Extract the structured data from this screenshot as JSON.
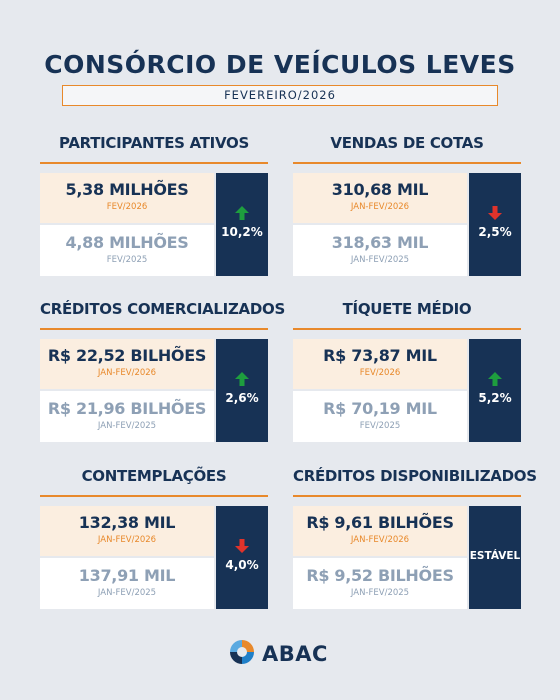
{
  "header": {
    "title": "CONSÓRCIO DE VEÍCULOS LEVES",
    "period": "FEVEREIRO/2026"
  },
  "cards": [
    {
      "title": "PARTICIPANTES ATIVOS",
      "current_value": "5,38 MILHÕES",
      "current_period": "FEV/2026",
      "previous_value": "4,88 MILHÕES",
      "previous_period": "FEV/2025",
      "change": "10,2%",
      "direction": "up"
    },
    {
      "title": "VENDAS DE COTAS",
      "current_value": "310,68 MIL",
      "current_period": "JAN-FEV/2026",
      "previous_value": "318,63 MIL",
      "previous_period": "JAN-FEV/2025",
      "change": "2,5%",
      "direction": "down"
    },
    {
      "title": "CRÉDITOS COMERCIALIZADOS",
      "current_value": "R$ 22,52 BILHÕES",
      "current_period": "JAN-FEV/2026",
      "previous_value": "R$ 21,96 BILHÕES",
      "previous_period": "JAN-FEV/2025",
      "change": "2,6%",
      "direction": "up"
    },
    {
      "title": "TÍQUETE MÉDIO",
      "current_value": "R$ 73,87 MIL",
      "current_period": "FEV/2026",
      "previous_value": "R$ 70,19 MIL",
      "previous_period": "FEV/2025",
      "change": "5,2%",
      "direction": "up"
    },
    {
      "title": "CONTEMPLAÇÕES",
      "current_value": "132,38 MIL",
      "current_period": "JAN-FEV/2026",
      "previous_value": "137,91 MIL",
      "previous_period": "JAN-FEV/2025",
      "change": "4,0%",
      "direction": "down"
    },
    {
      "title": "CRÉDITOS DISPONIBILIZADOS",
      "current_value": "R$ 9,61 BILHÕES",
      "current_period": "JAN-FEV/2026",
      "previous_value": "R$ 9,52 BILHÕES",
      "previous_period": "JAN-FEV/2025",
      "change": "ESTÁVEL",
      "direction": "stable"
    }
  ],
  "footer": {
    "logo_text": "ABAC"
  },
  "colors": {
    "navy": "#173255",
    "orange": "#e8892b",
    "up": "#1e9e3e",
    "down": "#e0332b",
    "background": "#e6e9ee"
  }
}
